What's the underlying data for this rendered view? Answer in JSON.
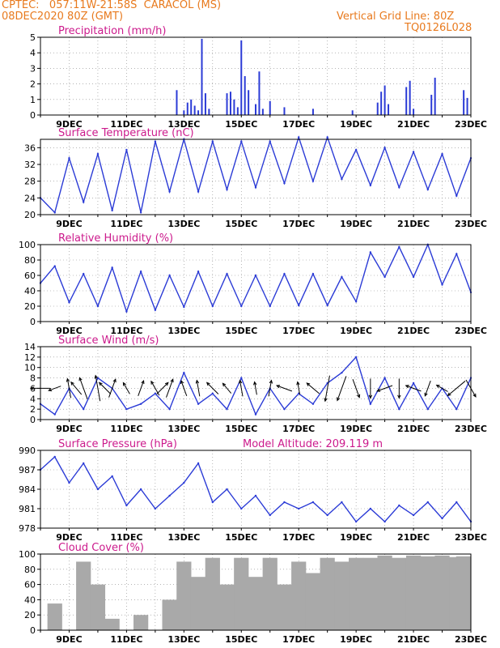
{
  "header": {
    "station": "CPTEC:   057:11W-21:58S  CARACOL (MS)",
    "run": "08DEC2020 80Z (GMT)",
    "grid_note": "Vertical Grid Line: 80Z",
    "code": "TQ0126L028"
  },
  "colors": {
    "header_text": "#e87a1e",
    "panel_title": "#cc1a8c",
    "series_line": "#2b3bd6",
    "bars": "#2b3bd6",
    "cloud": "#a9a9a9"
  },
  "x_axis": {
    "start": "08DEC2020 00Z",
    "end": "23DEC2020 00Z",
    "tick_labels": [
      "9DEC",
      "11DEC",
      "13DEC",
      "15DEC",
      "17DEC",
      "19DEC",
      "21DEC",
      "23DEC"
    ]
  },
  "chart_data": [
    {
      "type": "bar",
      "title": "Precipitation (mm/h)",
      "ylim": [
        0,
        5
      ],
      "y_ticks": [
        0,
        1,
        2,
        3,
        4,
        5
      ],
      "x": [
        "12DEC18Z",
        "13DEC00Z",
        "13DEC03Z",
        "13DEC06Z",
        "13DEC09Z",
        "13DEC12Z",
        "13DEC15Z",
        "13DEC18Z",
        "13DEC21Z",
        "14DEC12Z",
        "14DEC15Z",
        "14DEC18Z",
        "14DEC21Z",
        "15DEC00Z",
        "15DEC03Z",
        "15DEC06Z",
        "15DEC12Z",
        "15DEC15Z",
        "15DEC18Z",
        "16DEC00Z",
        "16DEC12Z",
        "17DEC12Z",
        "18DEC21Z",
        "19DEC18Z",
        "19DEC21Z",
        "20DEC00Z",
        "20DEC03Z",
        "20DEC18Z",
        "20DEC21Z",
        "21DEC00Z",
        "21DEC15Z",
        "21DEC18Z",
        "22DEC18Z",
        "22DEC21Z"
      ],
      "values": [
        1.6,
        0.3,
        0.8,
        1.0,
        0.6,
        0.3,
        4.9,
        1.4,
        0.4,
        1.4,
        1.5,
        1.0,
        0.5,
        4.8,
        2.5,
        1.6,
        0.7,
        2.8,
        0.4,
        0.9,
        0.5,
        0.4,
        0.3,
        0.8,
        1.5,
        1.9,
        0.7,
        1.8,
        2.2,
        0.4,
        1.3,
        2.4,
        1.6,
        1.1
      ]
    },
    {
      "type": "line",
      "title": "Surface Temperature (nC)",
      "ylim": [
        20,
        38
      ],
      "y_ticks": [
        20,
        24,
        28,
        32,
        36
      ],
      "x": [
        "08DEC00Z",
        "08DEC12Z",
        "09DEC00Z",
        "09DEC12Z",
        "10DEC00Z",
        "10DEC12Z",
        "11DEC00Z",
        "11DEC12Z",
        "12DEC00Z",
        "12DEC12Z",
        "13DEC00Z",
        "13DEC12Z",
        "14DEC00Z",
        "14DEC12Z",
        "15DEC00Z",
        "15DEC12Z",
        "16DEC00Z",
        "16DEC12Z",
        "17DEC00Z",
        "17DEC12Z",
        "18DEC00Z",
        "18DEC12Z",
        "19DEC00Z",
        "19DEC12Z",
        "20DEC00Z",
        "20DEC12Z",
        "21DEC00Z",
        "21DEC12Z",
        "22DEC00Z",
        "22DEC12Z",
        "23DEC00Z"
      ],
      "values": [
        24,
        20.5,
        33.5,
        23,
        34.5,
        21,
        35.5,
        20.5,
        37.5,
        25.5,
        38,
        25.5,
        37.5,
        26,
        37.5,
        26.5,
        37.5,
        27.5,
        38.5,
        28,
        38.5,
        28.5,
        35.5,
        27,
        36,
        26.5,
        35,
        26,
        34.5,
        24.5,
        33.5
      ]
    },
    {
      "type": "line",
      "title": "Relative Humidity (%)",
      "ylim": [
        0,
        100
      ],
      "y_ticks": [
        0,
        20,
        40,
        60,
        80,
        100
      ],
      "x": [
        "08DEC00Z",
        "08DEC12Z",
        "09DEC00Z",
        "09DEC12Z",
        "10DEC00Z",
        "10DEC12Z",
        "11DEC00Z",
        "11DEC12Z",
        "12DEC00Z",
        "12DEC12Z",
        "13DEC00Z",
        "13DEC12Z",
        "14DEC00Z",
        "14DEC12Z",
        "15DEC00Z",
        "15DEC12Z",
        "16DEC00Z",
        "16DEC12Z",
        "17DEC00Z",
        "17DEC12Z",
        "18DEC00Z",
        "18DEC12Z",
        "19DEC00Z",
        "19DEC12Z",
        "20DEC00Z",
        "20DEC12Z",
        "21DEC00Z",
        "21DEC12Z",
        "22DEC00Z",
        "22DEC12Z",
        "23DEC00Z"
      ],
      "values": [
        50,
        72,
        25,
        62,
        20,
        70,
        13,
        65,
        15,
        60,
        19,
        65,
        20,
        62,
        20,
        60,
        20,
        62,
        21,
        62,
        21,
        58,
        26,
        90,
        58,
        97,
        58,
        100,
        48,
        88,
        38
      ]
    },
    {
      "type": "line",
      "title": "Surface Wind (m/s)",
      "ylim": [
        0,
        14
      ],
      "y_ticks": [
        0,
        2,
        4,
        6,
        8,
        10,
        12,
        14
      ],
      "x": [
        "08DEC00Z",
        "08DEC12Z",
        "09DEC00Z",
        "09DEC12Z",
        "10DEC00Z",
        "10DEC12Z",
        "11DEC00Z",
        "11DEC12Z",
        "12DEC00Z",
        "12DEC12Z",
        "13DEC00Z",
        "13DEC12Z",
        "14DEC00Z",
        "14DEC12Z",
        "15DEC00Z",
        "15DEC12Z",
        "16DEC00Z",
        "16DEC12Z",
        "17DEC00Z",
        "17DEC12Z",
        "18DEC00Z",
        "18DEC12Z",
        "19DEC00Z",
        "19DEC12Z",
        "20DEC00Z",
        "20DEC12Z",
        "21DEC00Z",
        "21DEC12Z",
        "22DEC00Z",
        "22DEC12Z",
        "23DEC00Z"
      ],
      "values": [
        3,
        1,
        6,
        2,
        8,
        6,
        2,
        3,
        5,
        2,
        9,
        3,
        5,
        2,
        8,
        1,
        6,
        2,
        5,
        3,
        7,
        9,
        12,
        3,
        8,
        2,
        7,
        2,
        6,
        2,
        8
      ]
    },
    {
      "type": "line",
      "title": "Surface Pressure (hPa)",
      "subtitle": "Model Altitude: 209.119 m",
      "ylim": [
        978,
        990
      ],
      "y_ticks": [
        978,
        981,
        984,
        987,
        990
      ],
      "x": [
        "08DEC00Z",
        "08DEC12Z",
        "09DEC00Z",
        "09DEC12Z",
        "10DEC00Z",
        "10DEC12Z",
        "11DEC00Z",
        "11DEC12Z",
        "12DEC00Z",
        "12DEC12Z",
        "13DEC00Z",
        "13DEC12Z",
        "14DEC00Z",
        "14DEC12Z",
        "15DEC00Z",
        "15DEC12Z",
        "16DEC00Z",
        "16DEC12Z",
        "17DEC00Z",
        "17DEC12Z",
        "18DEC00Z",
        "18DEC12Z",
        "19DEC00Z",
        "19DEC12Z",
        "20DEC00Z",
        "20DEC12Z",
        "21DEC00Z",
        "21DEC12Z",
        "22DEC00Z",
        "22DEC12Z",
        "23DEC00Z"
      ],
      "values": [
        987,
        989,
        985,
        988,
        984,
        986,
        981.5,
        984,
        981,
        983,
        985,
        988,
        982,
        984,
        981,
        983,
        980,
        982,
        981,
        982,
        980,
        982,
        979,
        981,
        979,
        981.5,
        980,
        982,
        979.5,
        982,
        979
      ]
    },
    {
      "type": "bar",
      "title": "Cloud Cover (%)",
      "ylim": [
        0,
        100
      ],
      "y_ticks": [
        0,
        20,
        40,
        60,
        80,
        100
      ],
      "x": [
        "08DEC00Z",
        "08DEC12Z",
        "09DEC00Z",
        "09DEC12Z",
        "10DEC00Z",
        "10DEC12Z",
        "11DEC00Z",
        "11DEC12Z",
        "12DEC00Z",
        "12DEC12Z",
        "13DEC00Z",
        "13DEC12Z",
        "14DEC00Z",
        "14DEC12Z",
        "15DEC00Z",
        "15DEC12Z",
        "16DEC00Z",
        "16DEC12Z",
        "17DEC00Z",
        "17DEC12Z",
        "18DEC00Z",
        "18DEC12Z",
        "19DEC00Z",
        "19DEC12Z",
        "20DEC00Z",
        "20DEC12Z",
        "21DEC00Z",
        "21DEC12Z",
        "22DEC00Z",
        "22DEC12Z",
        "23DEC00Z"
      ],
      "values": [
        0,
        35,
        0,
        90,
        60,
        15,
        0,
        20,
        0,
        40,
        90,
        70,
        95,
        60,
        95,
        70,
        95,
        60,
        90,
        75,
        95,
        90,
        95,
        95,
        98,
        95,
        98,
        97,
        98,
        96,
        97
      ]
    }
  ],
  "wind_vectors": {
    "x": [
      "08DEC00Z",
      "08DEC12Z",
      "09DEC00Z",
      "09DEC06Z",
      "09DEC12Z",
      "10DEC00Z",
      "10DEC06Z",
      "10DEC12Z",
      "11DEC00Z",
      "11DEC12Z",
      "12DEC00Z",
      "12DEC06Z",
      "12DEC12Z",
      "13DEC00Z",
      "13DEC12Z",
      "14DEC00Z",
      "14DEC12Z",
      "15DEC00Z",
      "15DEC12Z",
      "16DEC00Z",
      "16DEC12Z",
      "17DEC00Z",
      "17DEC12Z",
      "18DEC00Z",
      "18DEC12Z",
      "19DEC00Z",
      "19DEC12Z",
      "20DEC00Z",
      "20DEC12Z",
      "21DEC00Z",
      "21DEC12Z",
      "22DEC00Z",
      "22DEC12Z",
      "23DEC00Z"
    ],
    "angle_deg": [
      180,
      200,
      100,
      130,
      110,
      100,
      135,
      70,
      120,
      70,
      120,
      45,
      70,
      110,
      100,
      135,
      130,
      100,
      100,
      80,
      160,
      100,
      140,
      260,
      250,
      290,
      270,
      200,
      270,
      160,
      250,
      150,
      220,
      300
    ],
    "speed": [
      6,
      4,
      6,
      5,
      7,
      8,
      5,
      6,
      4,
      5,
      5,
      5,
      6,
      5,
      5,
      5,
      4,
      5,
      4,
      5,
      5,
      4,
      5,
      8,
      8,
      6,
      6,
      5,
      6,
      5,
      5,
      4,
      7,
      6
    ]
  }
}
